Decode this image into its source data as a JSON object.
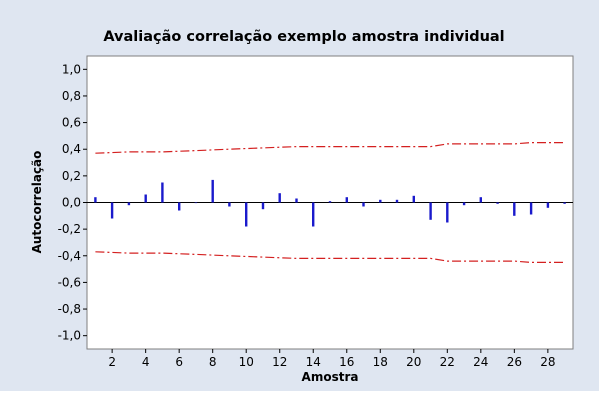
{
  "chart_data": {
    "type": "bar",
    "title": "Avaliação correlação exemplo amostra individual",
    "xlabel": "Amostra",
    "ylabel": "Autocorrelação",
    "xlim": [
      0.5,
      29.5
    ],
    "ylim": [
      -1.1,
      1.1
    ],
    "x_ticks": [
      2,
      4,
      6,
      8,
      10,
      12,
      14,
      16,
      18,
      20,
      22,
      24,
      26,
      28
    ],
    "y_ticks": [
      -1.0,
      -0.8,
      -0.6,
      -0.4,
      -0.2,
      0.0,
      0.2,
      0.4,
      0.6,
      0.8,
      1.0
    ],
    "y_tick_labels": [
      "-1,0",
      "-0,8",
      "-0,6",
      "-0,4",
      "-0,2",
      "0,0",
      "0,2",
      "0,4",
      "0,6",
      "0,8",
      "1,0"
    ],
    "grid": false,
    "series": [
      {
        "values": [
          {
            "x": 1,
            "y": 0.04
          },
          {
            "x": 2,
            "y": -0.12
          },
          {
            "x": 3,
            "y": -0.02
          },
          {
            "x": 4,
            "y": 0.06
          },
          {
            "x": 5,
            "y": 0.15
          },
          {
            "x": 6,
            "y": -0.06
          },
          {
            "x": 7,
            "y": 0.0
          },
          {
            "x": 8,
            "y": 0.17
          },
          {
            "x": 9,
            "y": -0.03
          },
          {
            "x": 10,
            "y": -0.18
          },
          {
            "x": 11,
            "y": -0.05
          },
          {
            "x": 12,
            "y": 0.07
          },
          {
            "x": 13,
            "y": 0.03
          },
          {
            "x": 14,
            "y": -0.18
          },
          {
            "x": 15,
            "y": 0.01
          },
          {
            "x": 16,
            "y": 0.04
          },
          {
            "x": 17,
            "y": -0.03
          },
          {
            "x": 18,
            "y": 0.02
          },
          {
            "x": 19,
            "y": 0.02
          },
          {
            "x": 20,
            "y": 0.05
          },
          {
            "x": 21,
            "y": -0.13
          },
          {
            "x": 22,
            "y": -0.15
          },
          {
            "x": 23,
            "y": -0.02
          },
          {
            "x": 24,
            "y": 0.04
          },
          {
            "x": 25,
            "y": -0.01
          },
          {
            "x": 26,
            "y": -0.1
          },
          {
            "x": 27,
            "y": -0.09
          },
          {
            "x": 28,
            "y": -0.04
          },
          {
            "x": 29,
            "y": -0.01
          }
        ]
      },
      {
        "values": [
          {
            "x": 1,
            "y": 0.37
          },
          {
            "x": 3,
            "y": 0.38
          },
          {
            "x": 5,
            "y": 0.38
          },
          {
            "x": 7,
            "y": 0.39
          },
          {
            "x": 9,
            "y": 0.4
          },
          {
            "x": 11,
            "y": 0.41
          },
          {
            "x": 13,
            "y": 0.42
          },
          {
            "x": 15,
            "y": 0.42
          },
          {
            "x": 17,
            "y": 0.42
          },
          {
            "x": 19,
            "y": 0.42
          },
          {
            "x": 21,
            "y": 0.42
          },
          {
            "x": 22,
            "y": 0.44
          },
          {
            "x": 24,
            "y": 0.44
          },
          {
            "x": 26,
            "y": 0.44
          },
          {
            "x": 27,
            "y": 0.45
          },
          {
            "x": 29,
            "y": 0.45
          }
        ]
      },
      {
        "values": [
          {
            "x": 1,
            "y": -0.37
          },
          {
            "x": 3,
            "y": -0.38
          },
          {
            "x": 5,
            "y": -0.38
          },
          {
            "x": 7,
            "y": -0.39
          },
          {
            "x": 9,
            "y": -0.4
          },
          {
            "x": 11,
            "y": -0.41
          },
          {
            "x": 13,
            "y": -0.42
          },
          {
            "x": 15,
            "y": -0.42
          },
          {
            "x": 17,
            "y": -0.42
          },
          {
            "x": 19,
            "y": -0.42
          },
          {
            "x": 21,
            "y": -0.42
          },
          {
            "x": 22,
            "y": -0.44
          },
          {
            "x": 24,
            "y": -0.44
          },
          {
            "x": 26,
            "y": -0.44
          },
          {
            "x": 27,
            "y": -0.45
          },
          {
            "x": 29,
            "y": -0.45
          }
        ]
      }
    ],
    "colors": {
      "background": "#dfe6f1",
      "plot_area": "#ffffff",
      "bars": "#1a1acc",
      "limits": "#d42020"
    }
  }
}
